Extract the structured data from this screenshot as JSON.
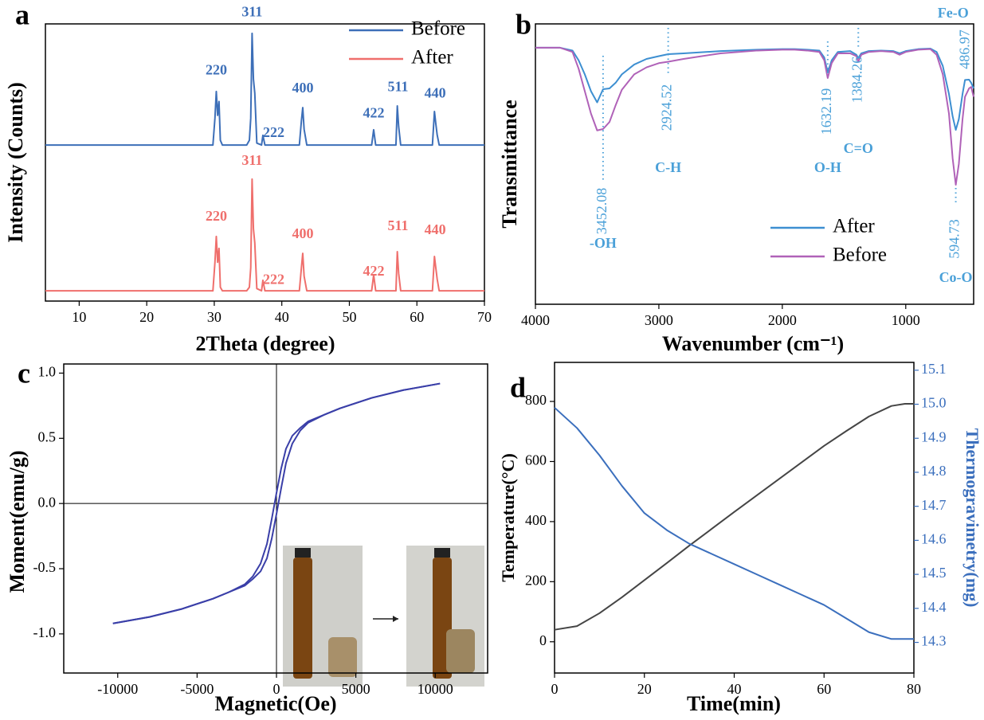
{
  "chart_data": [
    {
      "type": "line",
      "label": "a",
      "xlabel": "2Theta (degree)",
      "ylabel": "Intensity (Counts)",
      "xlim": [
        5,
        70
      ],
      "xticks": [
        10,
        20,
        30,
        40,
        50,
        60,
        70
      ],
      "ylim": [
        0,
        100
      ],
      "legend": "upper right",
      "x": [
        5,
        25,
        29.8,
        30.1,
        30.3,
        30.5,
        30.7,
        30.9,
        31.2,
        34.8,
        35.2,
        35.4,
        35.6,
        35.8,
        36.0,
        36.3,
        37.0,
        37.2,
        37.5,
        42.6,
        42.9,
        43.1,
        43.3,
        43.7,
        53.3,
        53.6,
        53.9,
        56.9,
        57.1,
        57.3,
        57.6,
        62.3,
        62.6,
        62.8,
        63.0,
        63.3,
        70
      ],
      "series": [
        {
          "name": "Before",
          "color": "#3d6fb8",
          "values": [
            56.3,
            56.3,
            56.3,
            66,
            75.6,
            67,
            72,
            58,
            56.3,
            56.3,
            58,
            66,
            96.6,
            80,
            75,
            57,
            56.3,
            59.8,
            56.3,
            56.3,
            65,
            69.8,
            62,
            56.3,
            56.3,
            61.8,
            56.3,
            56.3,
            70.4,
            63,
            56.3,
            56.3,
            68.4,
            64,
            60,
            56.3,
            56.3
          ],
          "annotations": [
            {
              "text": "220",
              "x": 30.3,
              "y": 80
            },
            {
              "text": "311",
              "x": 35.6,
              "y": 101
            },
            {
              "text": "222",
              "x": 38.8,
              "y": 57.5
            },
            {
              "text": "400",
              "x": 43.1,
              "y": 73.6
            },
            {
              "text": "422",
              "x": 53.6,
              "y": 64.5
            },
            {
              "text": "511",
              "x": 57.2,
              "y": 74.1
            },
            {
              "text": "440",
              "x": 62.7,
              "y": 71.8
            }
          ]
        },
        {
          "name": "After",
          "color": "#ef6f6c",
          "values": [
            3.7,
            3.7,
            3.7,
            14,
            23.3,
            14,
            19,
            5,
            3.7,
            3.7,
            5,
            12,
            44,
            26,
            21,
            4.5,
            3.7,
            7.5,
            3.7,
            3.7,
            12,
            17.2,
            9,
            3.7,
            3.7,
            9.5,
            3.7,
            3.7,
            17.8,
            10,
            3.7,
            3.7,
            16.1,
            12,
            8,
            3.7,
            3.7
          ],
          "annotations": [
            {
              "text": "220",
              "x": 30.3,
              "y": 27.3
            },
            {
              "text": "311",
              "x": 35.6,
              "y": 47.4
            },
            {
              "text": "222",
              "x": 38.8,
              "y": 4.5
            },
            {
              "text": "400",
              "x": 43.1,
              "y": 21
            },
            {
              "text": "422",
              "x": 53.6,
              "y": 7.5
            },
            {
              "text": "511",
              "x": 57.2,
              "y": 23.9
            },
            {
              "text": "440",
              "x": 62.7,
              "y": 22.4
            }
          ]
        }
      ]
    },
    {
      "type": "line",
      "label": "b",
      "xlabel": "Wavenumber (cm⁻¹)",
      "ylabel": "Transmittance",
      "xlim": [
        4000,
        450
      ],
      "xticks": [
        4000,
        3000,
        2000,
        1000
      ],
      "ylim": [
        0,
        100
      ],
      "legend": "lower right",
      "x": [
        4000,
        3800,
        3700,
        3650,
        3600,
        3550,
        3500,
        3452.08,
        3400,
        3350,
        3300,
        3200,
        3100,
        3000,
        2924.52,
        2800,
        2500,
        2200,
        2000,
        1900,
        1800,
        1700,
        1660,
        1632.19,
        1600,
        1550,
        1450,
        1400,
        1384.26,
        1360,
        1300,
        1200,
        1100,
        1050,
        1000,
        900,
        800,
        750,
        700,
        650,
        620,
        594.73,
        570,
        540,
        520,
        486.97,
        470,
        450
      ],
      "series": [
        {
          "name": "After",
          "color": "#3d8fd1",
          "values": [
            91.5,
            91.5,
            90.5,
            87,
            82,
            76,
            72,
            76.7,
            77,
            79,
            82,
            85.5,
            87.5,
            88.5,
            89.2,
            89.5,
            90.3,
            90.8,
            91,
            91,
            90.8,
            90.5,
            88,
            82.7,
            87,
            90,
            90.3,
            89,
            87.8,
            89.5,
            90.3,
            90.5,
            90.3,
            89.5,
            90.3,
            91,
            91.2,
            90,
            85,
            75,
            67,
            62.2,
            66,
            75,
            80,
            80.1,
            79,
            77
          ]
        },
        {
          "name": "Before",
          "color": "#b062b8",
          "values": [
            91.5,
            91.5,
            90,
            84,
            76,
            68,
            62,
            62.5,
            65,
            71,
            76.5,
            82,
            84.5,
            86,
            86.5,
            87.5,
            89.5,
            90.5,
            90.8,
            90.8,
            90.5,
            90,
            87,
            80.7,
            86,
            89.5,
            89.5,
            88.5,
            86.5,
            89,
            90,
            90.3,
            90,
            89,
            90,
            90.8,
            91,
            89,
            82,
            68,
            52,
            42.6,
            50,
            66,
            74,
            77,
            77.5,
            74
          ]
        }
      ],
      "annotations": [
        {
          "x": 3452.08,
          "text": "-OH"
        },
        {
          "x": 2924.52,
          "text": "C-H"
        },
        {
          "x": 1632.19,
          "text": "O-H"
        },
        {
          "x": 1384.26,
          "text": "C=O"
        },
        {
          "x": 594.73,
          "text": "Co-O"
        },
        {
          "x": 486.97,
          "text": "Fe-O"
        }
      ]
    },
    {
      "type": "line",
      "label": "c",
      "xlabel": "Magnetic(Oe)",
      "ylabel": "Moment(emu/g)",
      "xlim": [
        -13400,
        13300
      ],
      "xticks": [
        -10000,
        -5000,
        0,
        5000,
        10000
      ],
      "ylim": [
        -1.3,
        1.07
      ],
      "yticks": [
        {
          "value": -1,
          "label": "-1.0"
        },
        -0.5,
        {
          "value": 0,
          "label": "0.0"
        },
        0.5,
        {
          "value": 1,
          "label": "1.0"
        }
      ],
      "zero_lines": true,
      "x": [
        -10300,
        -8000,
        -6000,
        -4000,
        -3000,
        -2000,
        -1500,
        -1000,
        -600,
        -300,
        0,
        300,
        600,
        1000,
        1500,
        2000,
        3000,
        4000,
        6000,
        8000,
        10300
      ],
      "series": [
        {
          "color": "#3a3fa8",
          "values": [
            -0.92,
            -0.87,
            -0.81,
            -0.73,
            -0.68,
            -0.62,
            -0.56,
            -0.46,
            -0.31,
            -0.12,
            0.08,
            0.27,
            0.42,
            0.52,
            0.58,
            0.63,
            0.68,
            0.73,
            0.81,
            0.87,
            0.92
          ]
        },
        {
          "color": "#3a3fa8",
          "values": [
            -0.92,
            -0.87,
            -0.81,
            -0.73,
            -0.68,
            -0.63,
            -0.58,
            -0.52,
            -0.42,
            -0.27,
            -0.08,
            0.12,
            0.31,
            0.46,
            0.56,
            0.62,
            0.68,
            0.73,
            0.81,
            0.87,
            0.92
          ]
        }
      ]
    },
    {
      "type": "line",
      "label": "d",
      "xlabel": "Time(min)",
      "ylabel": "Temperature(°C)",
      "y2label": "Thermogravimetry(mg)",
      "xlim": [
        0,
        80
      ],
      "xticks": [
        0,
        20,
        40,
        60,
        80
      ],
      "ylim": [
        -104,
        930
      ],
      "yticks": [
        0,
        200,
        400,
        600,
        800
      ],
      "y2lim": [
        14.21,
        15.123
      ],
      "y2ticks": [
        14.3,
        14.4,
        14.5,
        14.6,
        14.7,
        14.8,
        14.9,
        {
          "value": 15,
          "label": "15.0"
        },
        15.1
      ],
      "x": [
        0,
        5,
        10,
        15,
        20,
        25,
        30,
        35,
        40,
        45,
        50,
        55,
        60,
        65,
        70,
        75,
        78,
        80
      ],
      "series": [
        {
          "color": "#454545",
          "values": [
            40,
            52,
            95,
            148,
            205,
            262,
            320,
            376,
            432,
            487,
            542,
            597,
            652,
            702,
            750,
            785,
            792,
            792
          ]
        },
        {
          "color": "#3b6fbd",
          "axis": "y2",
          "values": [
            14.99,
            14.93,
            14.85,
            14.76,
            14.68,
            14.63,
            14.59,
            14.56,
            14.53,
            14.5,
            14.47,
            14.44,
            14.41,
            14.37,
            14.33,
            14.31,
            14.31,
            14.31
          ]
        }
      ]
    }
  ]
}
